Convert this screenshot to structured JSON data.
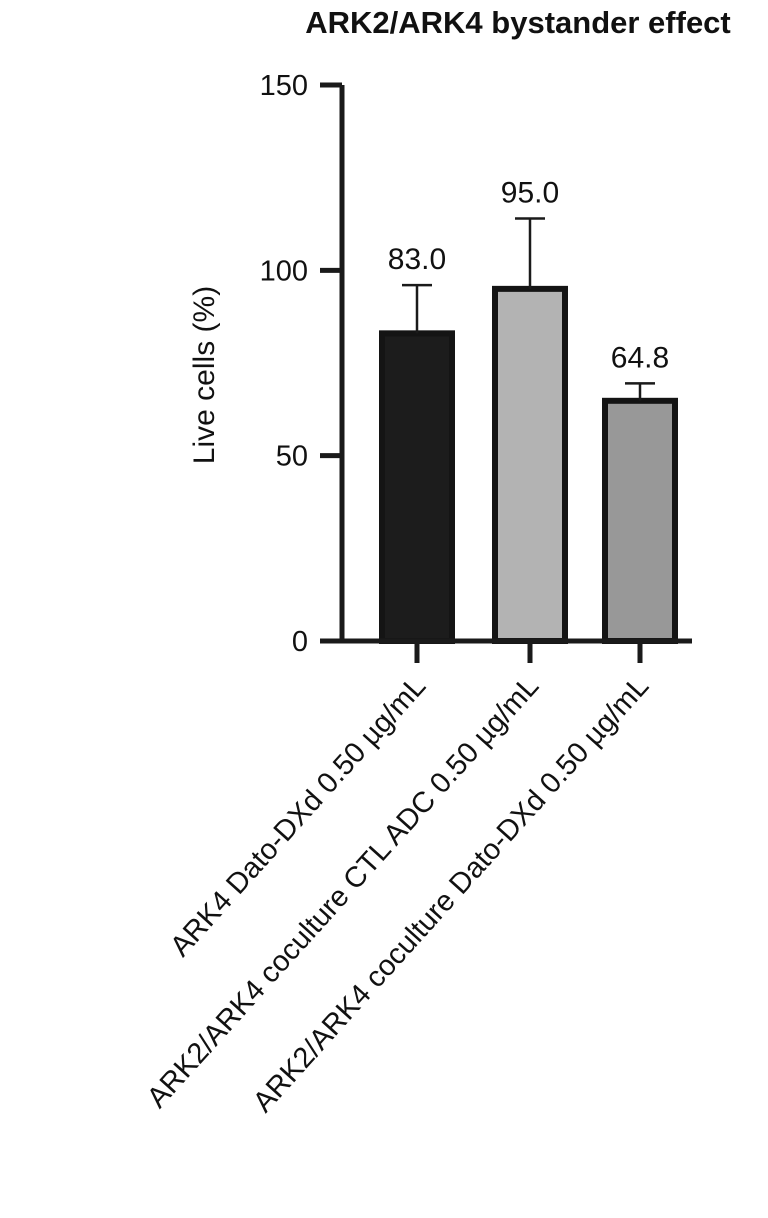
{
  "chart_data": {
    "type": "bar",
    "title": "ARK2/ARK4 bystander effect",
    "ylabel": "Live cells (%)",
    "xlabel": "",
    "ylim": [
      0,
      150
    ],
    "yticks": [
      0,
      50,
      100,
      150
    ],
    "grid": false,
    "categories": [
      "ARK4 Dato-DXd 0.50 µg/mL",
      "ARK2/ARK4 coculture CTL ADC 0.50 µg/mL",
      "ARK2/ARK4 coculture Dato-DXd  0.50 µg/mL"
    ],
    "values": [
      83.0,
      95.0,
      64.8
    ],
    "value_labels": [
      "83.0",
      "95.0",
      "64.8"
    ],
    "error_upper": [
      96,
      114,
      69.5
    ],
    "bar_colors": [
      "#1c1c1c",
      "#b3b3b3",
      "#989898"
    ],
    "edge_color": "#141414"
  }
}
